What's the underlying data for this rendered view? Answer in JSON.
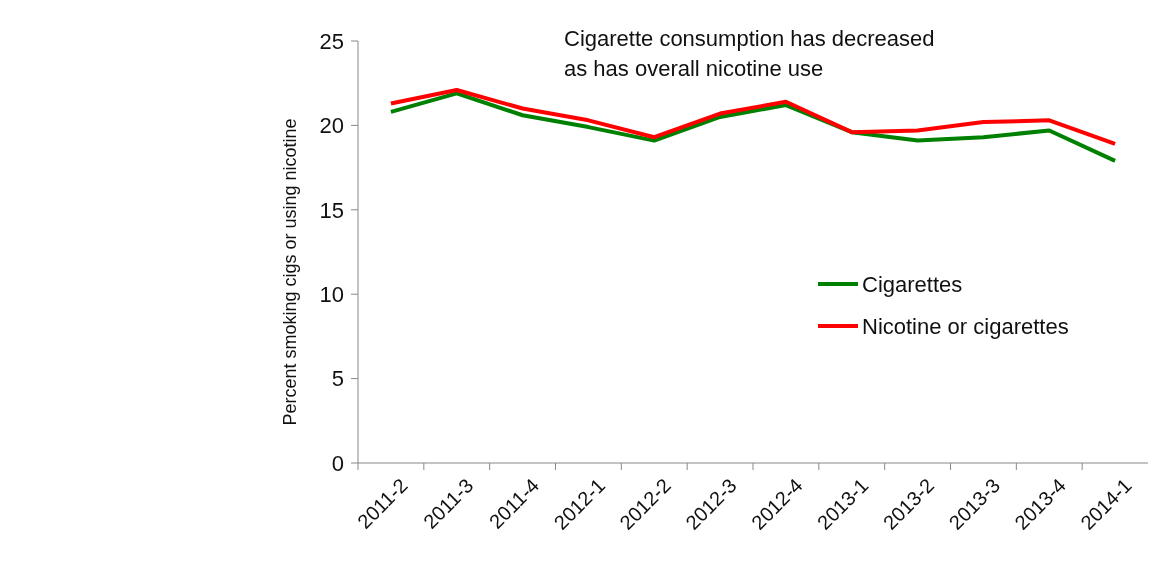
{
  "chart_data": {
    "type": "line",
    "ylabel": "Percent smoking cigs or using nicotine",
    "annotations": [
      "Cigarette consumption has decreased\nas has overall nicotine use"
    ],
    "categories": [
      "2011-2",
      "2011-3",
      "2011-4",
      "2012-1",
      "2012-2",
      "2012-3",
      "2012-4",
      "2013-1",
      "2013-2",
      "2013-3",
      "2013-4",
      "2014-1"
    ],
    "series": [
      {
        "name": "Cigarettes",
        "color": "#008000",
        "values": [
          20.8,
          21.9,
          20.6,
          19.9,
          19.1,
          20.5,
          21.2,
          19.6,
          19.1,
          19.3,
          19.7,
          17.9
        ]
      },
      {
        "name": "Nicotine or cigarettes",
        "color": "#ff0000",
        "values": [
          21.3,
          22.1,
          21.0,
          20.3,
          19.3,
          20.7,
          21.4,
          19.6,
          19.7,
          20.2,
          20.3,
          18.9
        ]
      }
    ],
    "ylim": [
      0,
      25
    ],
    "yticks": [
      0,
      5,
      10,
      15,
      20,
      25
    ],
    "grid": false,
    "legend": "right",
    "marker": "none",
    "line_style": "solid"
  }
}
